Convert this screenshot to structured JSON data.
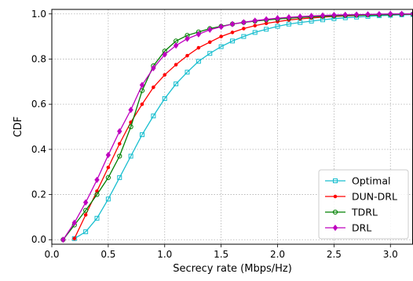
{
  "chart_data": {
    "type": "line",
    "xlabel": "Secrecy rate (Mbps/Hz)",
    "ylabel": "CDF",
    "xlim": [
      0.0,
      3.2
    ],
    "ylim": [
      -0.02,
      1.02
    ],
    "xticks": [
      0.0,
      0.5,
      1.0,
      1.5,
      2.0,
      2.5,
      3.0
    ],
    "xtick_labels": [
      "0.0",
      "0.5",
      "1.0",
      "1.5",
      "2.0",
      "2.5",
      "3.0"
    ],
    "yticks": [
      0.0,
      0.2,
      0.4,
      0.6,
      0.8,
      1.0
    ],
    "ytick_labels": [
      "0.0",
      "0.2",
      "0.4",
      "0.6",
      "0.8",
      "1.0"
    ],
    "grid": true,
    "legend_position": "bottom-right",
    "series": [
      {
        "name": "Optimal",
        "color": "#17becf",
        "marker": "square",
        "x": [
          0.2,
          0.3,
          0.4,
          0.5,
          0.6,
          0.7,
          0.8,
          0.9,
          1.0,
          1.1,
          1.2,
          1.3,
          1.4,
          1.5,
          1.6,
          1.7,
          1.8,
          1.9,
          2.0,
          2.1,
          2.2,
          2.3,
          2.4,
          2.5,
          2.6,
          2.7,
          2.8,
          2.9,
          3.0,
          3.1,
          3.2
        ],
        "y": [
          0.005,
          0.035,
          0.095,
          0.18,
          0.275,
          0.37,
          0.465,
          0.548,
          0.625,
          0.69,
          0.742,
          0.79,
          0.825,
          0.855,
          0.88,
          0.9,
          0.918,
          0.932,
          0.945,
          0.955,
          0.962,
          0.968,
          0.974,
          0.979,
          0.983,
          0.986,
          0.989,
          0.992,
          0.994,
          0.996,
          0.997
        ]
      },
      {
        "name": "DUN-DRL",
        "color": "#ff0000",
        "marker": "dot",
        "x": [
          0.2,
          0.3,
          0.4,
          0.5,
          0.6,
          0.7,
          0.8,
          0.9,
          1.0,
          1.1,
          1.2,
          1.3,
          1.4,
          1.5,
          1.6,
          1.7,
          1.8,
          1.9,
          2.0,
          2.1,
          2.2,
          2.3,
          2.4,
          2.5,
          2.6,
          2.7,
          2.8,
          2.9,
          3.0,
          3.1,
          3.2
        ],
        "y": [
          0.005,
          0.11,
          0.215,
          0.32,
          0.425,
          0.52,
          0.6,
          0.675,
          0.73,
          0.775,
          0.815,
          0.85,
          0.875,
          0.9,
          0.918,
          0.935,
          0.948,
          0.958,
          0.966,
          0.973,
          0.978,
          0.982,
          0.986,
          0.989,
          0.991,
          0.993,
          0.995,
          0.996,
          0.997,
          0.998,
          0.999
        ]
      },
      {
        "name": "TDRL",
        "color": "#008000",
        "marker": "circle",
        "x": [
          0.1,
          0.2,
          0.3,
          0.4,
          0.5,
          0.6,
          0.7,
          0.8,
          0.9,
          1.0,
          1.1,
          1.2,
          1.3,
          1.4,
          1.5,
          1.6,
          1.7,
          1.8,
          1.9,
          2.0,
          2.1,
          2.2,
          2.3,
          2.4,
          2.5,
          2.6,
          2.7,
          2.8,
          2.9,
          3.0,
          3.1,
          3.2
        ],
        "y": [
          0.0,
          0.065,
          0.13,
          0.2,
          0.275,
          0.37,
          0.5,
          0.66,
          0.77,
          0.835,
          0.88,
          0.905,
          0.92,
          0.935,
          0.945,
          0.955,
          0.962,
          0.968,
          0.973,
          0.977,
          0.981,
          0.984,
          0.987,
          0.989,
          0.991,
          0.993,
          0.994,
          0.995,
          0.996,
          0.997,
          0.998,
          0.999
        ]
      },
      {
        "name": "DRL",
        "color": "#bf00bf",
        "marker": "diamond",
        "x": [
          0.1,
          0.2,
          0.3,
          0.4,
          0.5,
          0.6,
          0.7,
          0.8,
          0.9,
          1.0,
          1.1,
          1.2,
          1.3,
          1.4,
          1.5,
          1.6,
          1.7,
          1.8,
          1.9,
          2.0,
          2.1,
          2.2,
          2.3,
          2.4,
          2.5,
          2.6,
          2.7,
          2.8,
          2.9,
          3.0,
          3.1,
          3.2
        ],
        "y": [
          0.0,
          0.075,
          0.165,
          0.265,
          0.375,
          0.48,
          0.575,
          0.685,
          0.76,
          0.82,
          0.86,
          0.89,
          0.91,
          0.93,
          0.943,
          0.955,
          0.963,
          0.97,
          0.976,
          0.981,
          0.985,
          0.988,
          0.991,
          0.993,
          0.995,
          0.996,
          0.997,
          0.998,
          0.999,
          1.0,
          1.0,
          1.0
        ]
      }
    ]
  }
}
